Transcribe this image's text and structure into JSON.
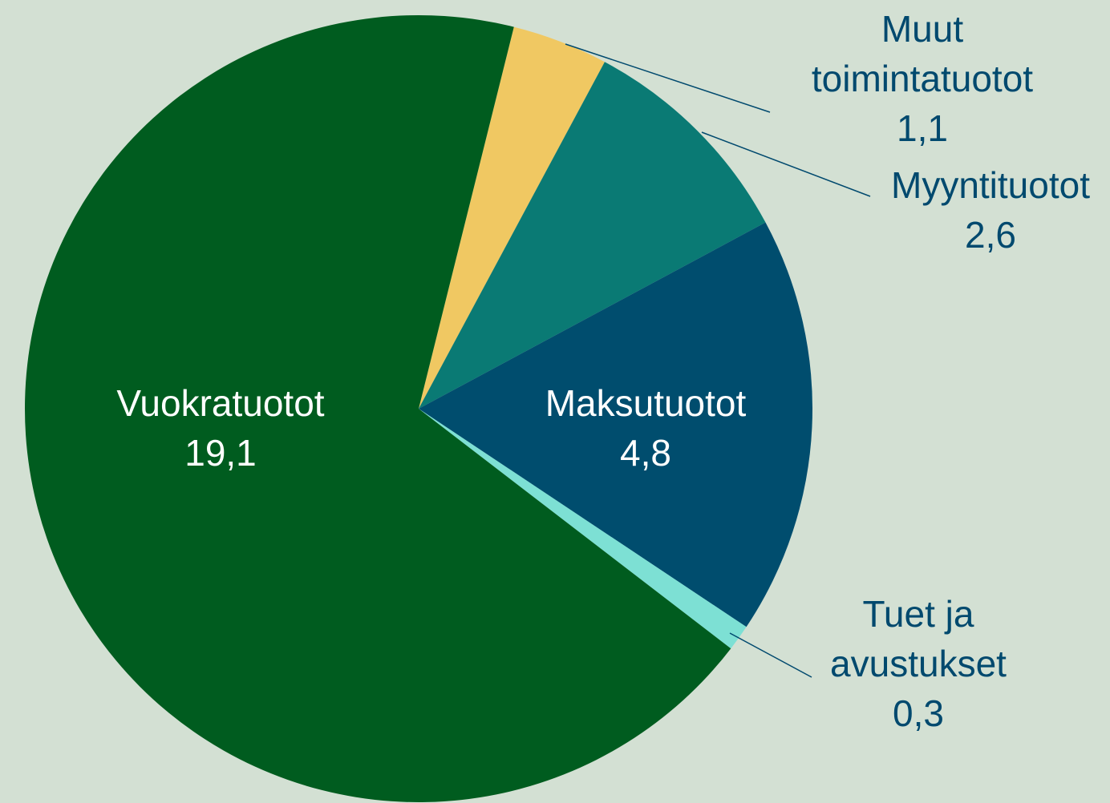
{
  "chart_data": {
    "type": "pie",
    "categories": [
      "Muut toimintatuotot",
      "Myyntituotot",
      "Maksutuotot",
      "Tuet ja avustukset",
      "Vuokratuotot"
    ],
    "values": [
      1.1,
      2.6,
      4.8,
      0.3,
      19.1
    ],
    "value_labels": [
      "1,1",
      "2,6",
      "4,8",
      "0,3",
      "19,1"
    ],
    "colors": [
      "#f0c862",
      "#0a7a74",
      "#004d6e",
      "#7de0d4",
      "#005c1f"
    ]
  }
}
